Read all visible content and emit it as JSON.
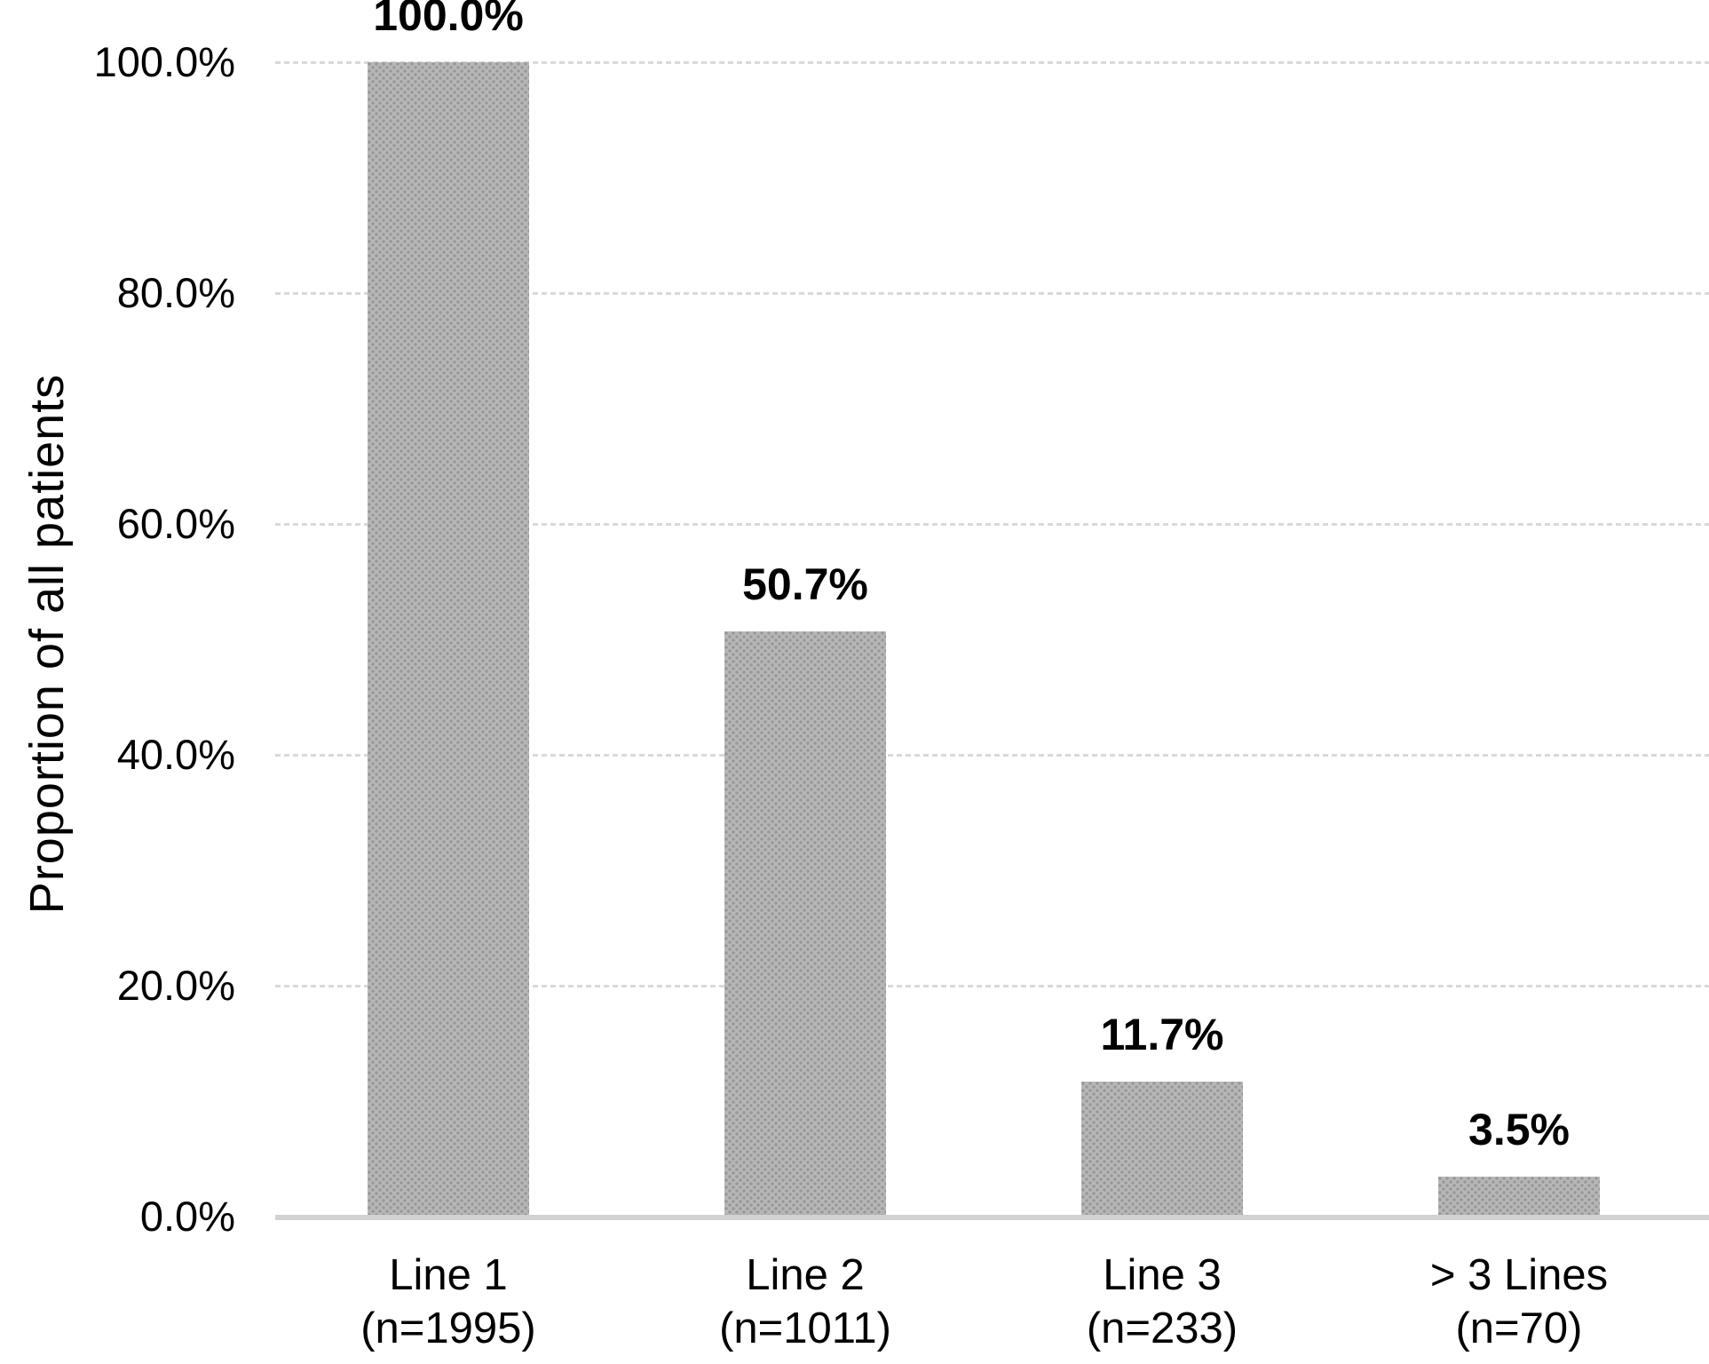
{
  "chart_data": {
    "type": "bar",
    "title": "",
    "xlabel": "",
    "ylabel": "Proportion of all patients",
    "ylim": [
      0,
      100
    ],
    "grid": true,
    "legend": false,
    "gridline_style": "dotted",
    "yticks": [
      {
        "value": 100,
        "label": "100.0%"
      },
      {
        "value": 80,
        "label": "80.0%"
      },
      {
        "value": 60,
        "label": "60.0%"
      },
      {
        "value": 40,
        "label": "40.0%"
      },
      {
        "value": 20,
        "label": "20.0%"
      },
      {
        "value": 0,
        "label": "0.0%"
      }
    ],
    "bars": [
      {
        "category": "Line 1",
        "n_label": "(n=1995)",
        "n": 1995,
        "value": 100.0,
        "value_label": "100.0%"
      },
      {
        "category": "Line 2",
        "n_label": "(n=1011)",
        "n": 1011,
        "value": 50.7,
        "value_label": "50.7%"
      },
      {
        "category": "Line 3",
        "n_label": "(n=233)",
        "n": 233,
        "value": 11.7,
        "value_label": "11.7%"
      },
      {
        "category": "> 3 Lines",
        "n_label": "(n=70)",
        "n": 70,
        "value": 3.5,
        "value_label": "3.5%"
      }
    ],
    "colors": {
      "background": "#ffffff",
      "bar_fill": "#b7b7b7",
      "bar_dot": "#999999",
      "gridline": "#d9d9d9",
      "axis_line": "#d2d2d2",
      "text": "#000000"
    }
  }
}
